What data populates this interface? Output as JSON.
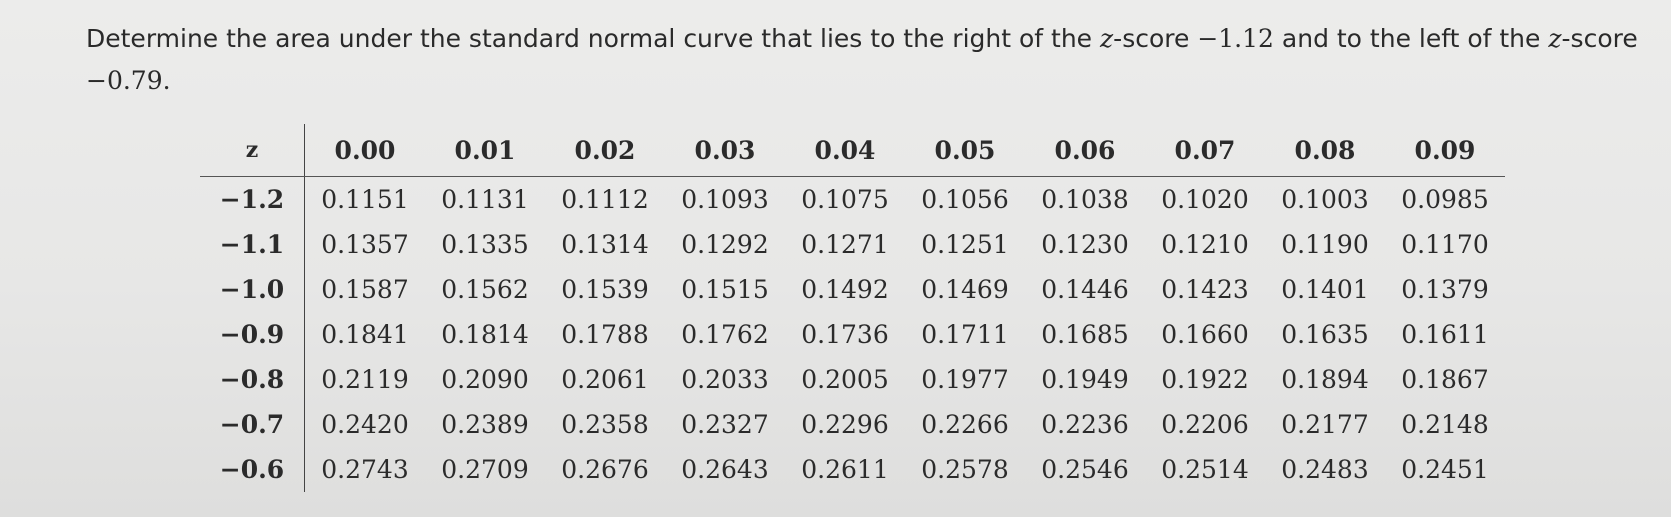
{
  "question": {
    "line1_prefix": "Determine the area under the standard normal curve that lies to the right of the ",
    "z_symbol": "z",
    "line1_mid": "-score ",
    "z1": "−1.12",
    "line1_mid2": " and to the left of the ",
    "line1_suffix": "-score",
    "z2": "−0.79",
    "end_punct": "."
  },
  "table": {
    "header_z": "z",
    "columns": [
      "0.00",
      "0.01",
      "0.02",
      "0.03",
      "0.04",
      "0.05",
      "0.06",
      "0.07",
      "0.08",
      "0.09"
    ],
    "rows": [
      {
        "z": "−1.2",
        "values": [
          "0.1151",
          "0.1131",
          "0.1112",
          "0.1093",
          "0.1075",
          "0.1056",
          "0.1038",
          "0.1020",
          "0.1003",
          "0.0985"
        ]
      },
      {
        "z": "−1.1",
        "values": [
          "0.1357",
          "0.1335",
          "0.1314",
          "0.1292",
          "0.1271",
          "0.1251",
          "0.1230",
          "0.1210",
          "0.1190",
          "0.1170"
        ]
      },
      {
        "z": "−1.0",
        "values": [
          "0.1587",
          "0.1562",
          "0.1539",
          "0.1515",
          "0.1492",
          "0.1469",
          "0.1446",
          "0.1423",
          "0.1401",
          "0.1379"
        ]
      },
      {
        "z": "−0.9",
        "values": [
          "0.1841",
          "0.1814",
          "0.1788",
          "0.1762",
          "0.1736",
          "0.1711",
          "0.1685",
          "0.1660",
          "0.1635",
          "0.1611"
        ]
      },
      {
        "z": "−0.8",
        "values": [
          "0.2119",
          "0.2090",
          "0.2061",
          "0.2033",
          "0.2005",
          "0.1977",
          "0.1949",
          "0.1922",
          "0.1894",
          "0.1867"
        ]
      },
      {
        "z": "−0.7",
        "values": [
          "0.2420",
          "0.2389",
          "0.2358",
          "0.2327",
          "0.2296",
          "0.2266",
          "0.2236",
          "0.2206",
          "0.2177",
          "0.2148"
        ]
      },
      {
        "z": "−0.6",
        "values": [
          "0.2743",
          "0.2709",
          "0.2676",
          "0.2643",
          "0.2611",
          "0.2578",
          "0.2546",
          "0.2514",
          "0.2483",
          "0.2451"
        ]
      }
    ]
  }
}
